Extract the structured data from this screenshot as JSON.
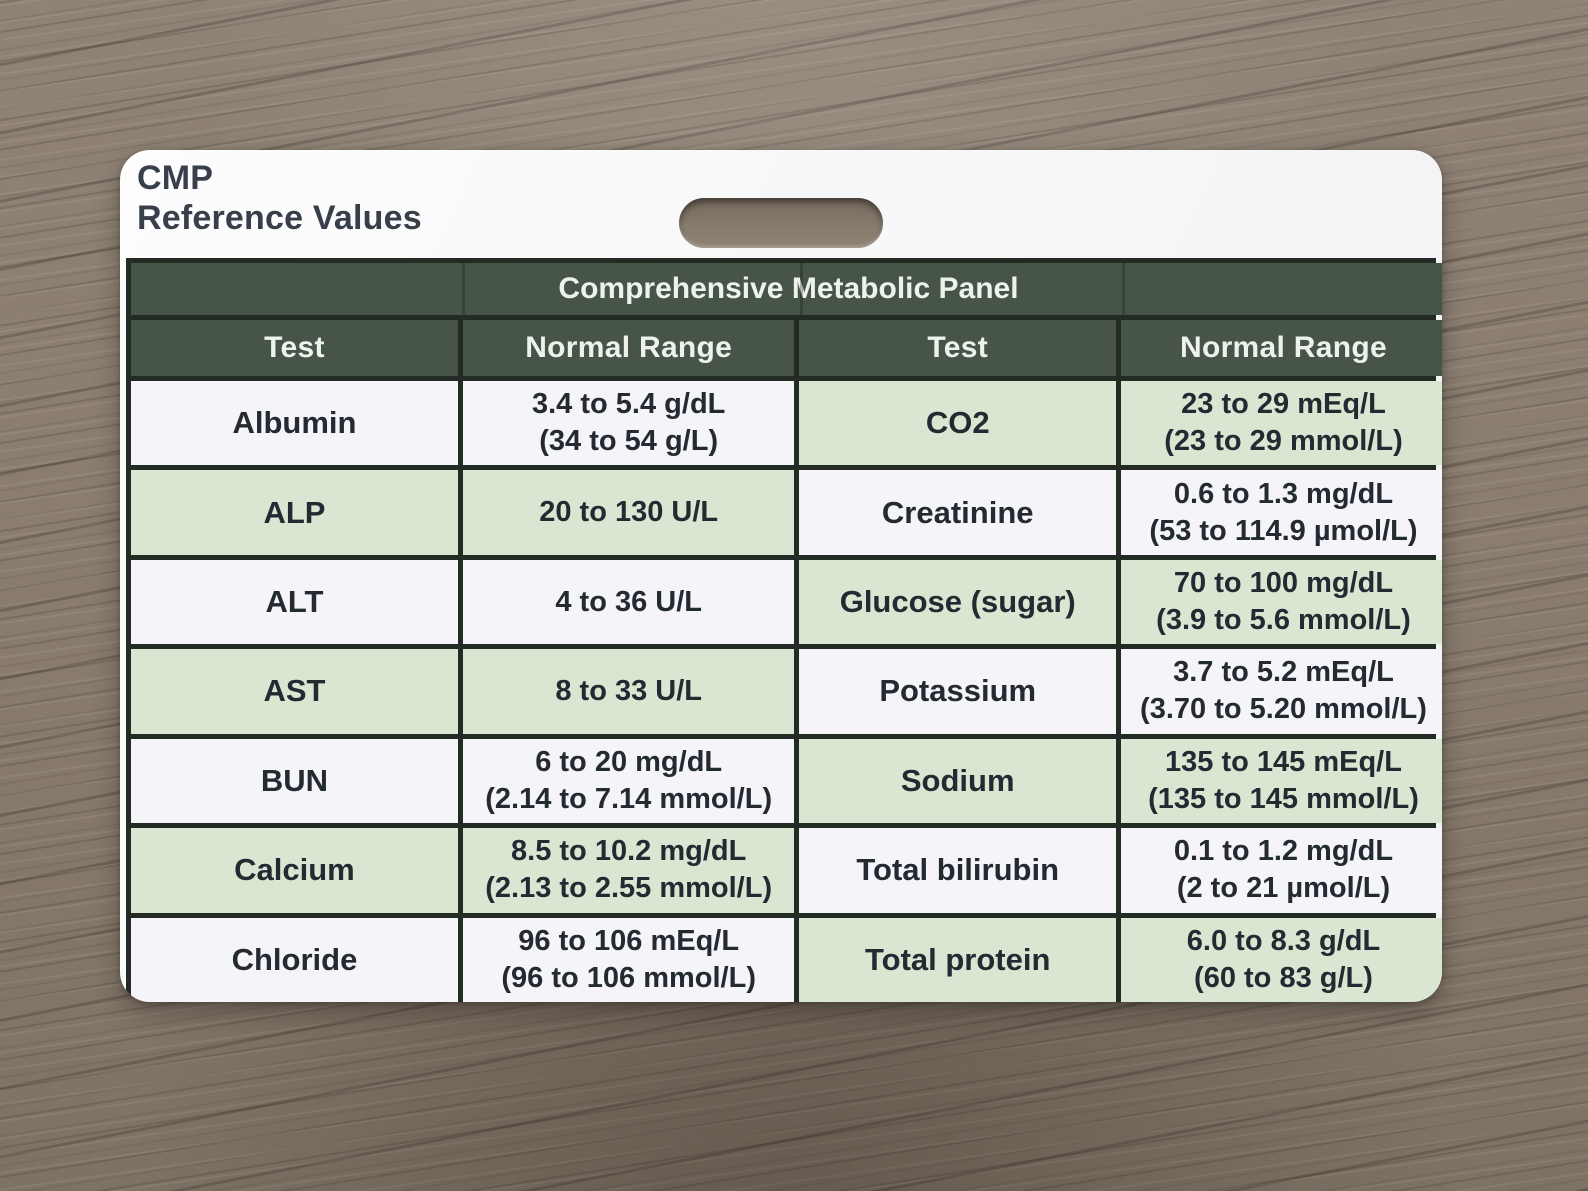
{
  "card": {
    "title_line1": "CMP",
    "title_line2": "Reference Values"
  },
  "table": {
    "panel_title": "Comprehensive Metabolic Panel",
    "headers": [
      "Test",
      "Normal Range",
      "Test",
      "Normal Range"
    ],
    "rows": [
      {
        "left": {
          "test": "Albumin",
          "range1": "3.4 to 5.4 g/dL",
          "range2": "(34 to 54 g/L)"
        },
        "right": {
          "test": "CO2",
          "range1": "23 to 29 mEq/L",
          "range2": "(23 to 29 mmol/L)"
        }
      },
      {
        "left": {
          "test": "ALP",
          "range1": "20 to 130 U/L",
          "range2": ""
        },
        "right": {
          "test": "Creatinine",
          "range1": "0.6 to 1.3 mg/dL",
          "range2": "(53 to 114.9 µmol/L)"
        }
      },
      {
        "left": {
          "test": "ALT",
          "range1": "4 to 36 U/L",
          "range2": ""
        },
        "right": {
          "test": "Glucose (sugar)",
          "range1": "70 to 100 mg/dL",
          "range2": "(3.9 to 5.6 mmol/L)"
        }
      },
      {
        "left": {
          "test": "AST",
          "range1": "8 to 33 U/L",
          "range2": ""
        },
        "right": {
          "test": "Potassium",
          "range1": "3.7 to 5.2 mEq/L",
          "range2": "(3.70 to 5.20 mmol/L)"
        }
      },
      {
        "left": {
          "test": "BUN",
          "range1": "6 to 20 mg/dL",
          "range2": "(2.14 to 7.14 mmol/L)"
        },
        "right": {
          "test": "Sodium",
          "range1": "135 to 145 mEq/L",
          "range2": "(135 to 145 mmol/L)"
        }
      },
      {
        "left": {
          "test": "Calcium",
          "range1": "8.5 to 10.2 mg/dL",
          "range2": "(2.13 to 2.55 mmol/L)"
        },
        "right": {
          "test": "Total bilirubin",
          "range1": "0.1 to 1.2 mg/dL",
          "range2": "(2 to 21 µmol/L)"
        }
      },
      {
        "left": {
          "test": "Chloride",
          "range1": "96 to 106 mEq/L",
          "range2": "(96 to 106 mmol/L)"
        },
        "right": {
          "test": "Total protein",
          "range1": "6.0 to 8.3 g/dL",
          "range2": "(60 to 83 g/L)"
        }
      }
    ]
  },
  "colors": {
    "header_green": "#475549",
    "row_green": "#d9e6d2",
    "row_white": "#f5f4f8",
    "grid_line": "#222b24",
    "card_white": "#f8f8fa",
    "text_dark": "#232a31",
    "wood_brown": "#897c6f"
  }
}
